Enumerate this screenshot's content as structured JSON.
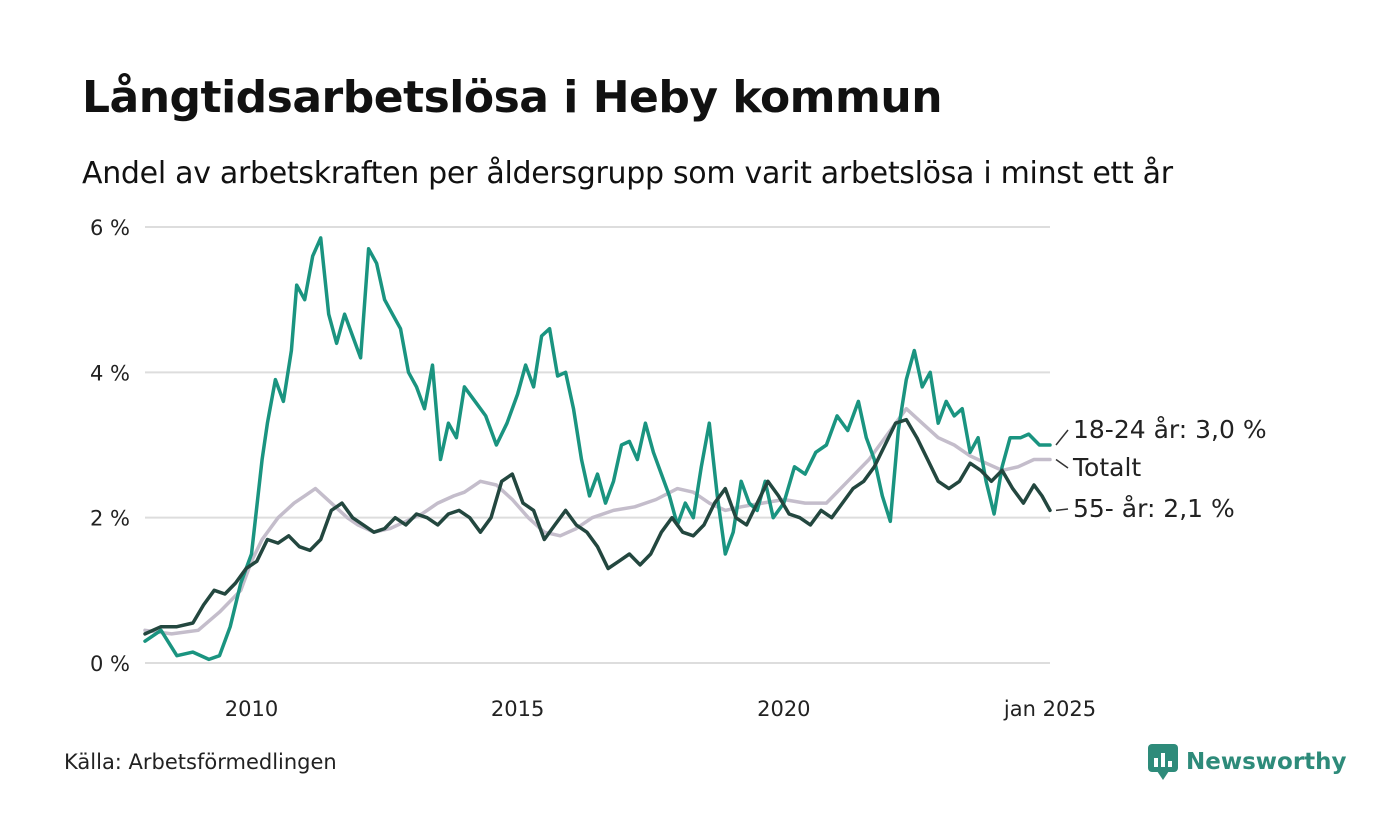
{
  "header": {
    "title": "Långtidsarbetslösa i Heby kommun",
    "subtitle": "Andel av arbetskraften per åldersgrupp som varit arbetslösa i minst ett år"
  },
  "footer": {
    "source": "Källa: Arbetsförmedlingen",
    "brand": "Newsworthy",
    "brand_icon": "bar-chart-icon"
  },
  "colors": {
    "series_18_24": "#1a9480",
    "series_total": "#c4bdcb",
    "series_55": "#23473f",
    "grid": "#dddddd",
    "brand": "#2e8b7a"
  },
  "chart_data": {
    "type": "line",
    "x_start": "2008-01",
    "x_end": "2025-01",
    "x_tick_labels": [
      "2010",
      "2015",
      "2020",
      "jan 2025"
    ],
    "x_tick_values": [
      2010,
      2015,
      2020,
      2025.0
    ],
    "y_tick_labels": [
      "0 %",
      "2 %",
      "4 %",
      "6 %"
    ],
    "y_tick_values": [
      0,
      2,
      4,
      6
    ],
    "ylim": [
      0,
      6
    ],
    "grid": true,
    "legend": "end-of-line labels, right",
    "series": [
      {
        "key": "total",
        "end_label": "Totalt",
        "color": "#c4bdcb",
        "points": [
          [
            2008.0,
            0.45
          ],
          [
            2008.5,
            0.4
          ],
          [
            2009.0,
            0.45
          ],
          [
            2009.4,
            0.7
          ],
          [
            2009.8,
            1.0
          ],
          [
            2010.0,
            1.4
          ],
          [
            2010.2,
            1.7
          ],
          [
            2010.5,
            2.0
          ],
          [
            2010.8,
            2.2
          ],
          [
            2011.0,
            2.3
          ],
          [
            2011.2,
            2.4
          ],
          [
            2011.5,
            2.2
          ],
          [
            2011.8,
            2.0
          ],
          [
            2012.0,
            1.9
          ],
          [
            2012.3,
            1.8
          ],
          [
            2012.6,
            1.85
          ],
          [
            2012.9,
            1.95
          ],
          [
            2013.2,
            2.05
          ],
          [
            2013.5,
            2.2
          ],
          [
            2013.8,
            2.3
          ],
          [
            2014.0,
            2.35
          ],
          [
            2014.3,
            2.5
          ],
          [
            2014.6,
            2.45
          ],
          [
            2014.9,
            2.25
          ],
          [
            2015.2,
            2.0
          ],
          [
            2015.5,
            1.8
          ],
          [
            2015.8,
            1.75
          ],
          [
            2016.1,
            1.85
          ],
          [
            2016.4,
            2.0
          ],
          [
            2016.8,
            2.1
          ],
          [
            2017.2,
            2.15
          ],
          [
            2017.6,
            2.25
          ],
          [
            2018.0,
            2.4
          ],
          [
            2018.3,
            2.35
          ],
          [
            2018.6,
            2.2
          ],
          [
            2018.9,
            2.1
          ],
          [
            2019.2,
            2.15
          ],
          [
            2019.6,
            2.2
          ],
          [
            2020.0,
            2.25
          ],
          [
            2020.4,
            2.2
          ],
          [
            2020.8,
            2.2
          ],
          [
            2021.2,
            2.5
          ],
          [
            2021.6,
            2.8
          ],
          [
            2022.0,
            3.2
          ],
          [
            2022.3,
            3.5
          ],
          [
            2022.6,
            3.3
          ],
          [
            2022.9,
            3.1
          ],
          [
            2023.2,
            3.0
          ],
          [
            2023.5,
            2.85
          ],
          [
            2023.8,
            2.75
          ],
          [
            2024.1,
            2.65
          ],
          [
            2024.4,
            2.7
          ],
          [
            2024.7,
            2.8
          ],
          [
            2025.0,
            2.8
          ]
        ]
      },
      {
        "key": "18-24",
        "end_label": "18-24 år: 3,0 %",
        "color": "#1a9480",
        "points": [
          [
            2008.0,
            0.3
          ],
          [
            2008.3,
            0.45
          ],
          [
            2008.6,
            0.1
          ],
          [
            2008.9,
            0.15
          ],
          [
            2009.2,
            0.05
          ],
          [
            2009.4,
            0.1
          ],
          [
            2009.6,
            0.5
          ],
          [
            2009.8,
            1.1
          ],
          [
            2010.0,
            1.5
          ],
          [
            2010.2,
            2.8
          ],
          [
            2010.3,
            3.3
          ],
          [
            2010.45,
            3.9
          ],
          [
            2010.6,
            3.6
          ],
          [
            2010.75,
            4.3
          ],
          [
            2010.85,
            5.2
          ],
          [
            2011.0,
            5.0
          ],
          [
            2011.15,
            5.6
          ],
          [
            2011.3,
            5.85
          ],
          [
            2011.45,
            4.8
          ],
          [
            2011.6,
            4.4
          ],
          [
            2011.75,
            4.8
          ],
          [
            2011.9,
            4.5
          ],
          [
            2012.05,
            4.2
          ],
          [
            2012.2,
            5.7
          ],
          [
            2012.35,
            5.5
          ],
          [
            2012.5,
            5.0
          ],
          [
            2012.65,
            4.8
          ],
          [
            2012.8,
            4.6
          ],
          [
            2012.95,
            4.0
          ],
          [
            2013.1,
            3.8
          ],
          [
            2013.25,
            3.5
          ],
          [
            2013.4,
            4.1
          ],
          [
            2013.55,
            2.8
          ],
          [
            2013.7,
            3.3
          ],
          [
            2013.85,
            3.1
          ],
          [
            2014.0,
            3.8
          ],
          [
            2014.2,
            3.6
          ],
          [
            2014.4,
            3.4
          ],
          [
            2014.6,
            3.0
          ],
          [
            2014.8,
            3.3
          ],
          [
            2015.0,
            3.7
          ],
          [
            2015.15,
            4.1
          ],
          [
            2015.3,
            3.8
          ],
          [
            2015.45,
            4.5
          ],
          [
            2015.6,
            4.6
          ],
          [
            2015.75,
            3.95
          ],
          [
            2015.9,
            4.0
          ],
          [
            2016.05,
            3.5
          ],
          [
            2016.2,
            2.8
          ],
          [
            2016.35,
            2.3
          ],
          [
            2016.5,
            2.6
          ],
          [
            2016.65,
            2.2
          ],
          [
            2016.8,
            2.5
          ],
          [
            2016.95,
            3.0
          ],
          [
            2017.1,
            3.05
          ],
          [
            2017.25,
            2.8
          ],
          [
            2017.4,
            3.3
          ],
          [
            2017.55,
            2.9
          ],
          [
            2017.7,
            2.6
          ],
          [
            2017.85,
            2.3
          ],
          [
            2018.0,
            1.9
          ],
          [
            2018.15,
            2.2
          ],
          [
            2018.3,
            2.0
          ],
          [
            2018.45,
            2.7
          ],
          [
            2018.6,
            3.3
          ],
          [
            2018.75,
            2.3
          ],
          [
            2018.9,
            1.5
          ],
          [
            2019.05,
            1.8
          ],
          [
            2019.2,
            2.5
          ],
          [
            2019.35,
            2.2
          ],
          [
            2019.5,
            2.1
          ],
          [
            2019.65,
            2.5
          ],
          [
            2019.8,
            2.0
          ],
          [
            2020.0,
            2.2
          ],
          [
            2020.2,
            2.7
          ],
          [
            2020.4,
            2.6
          ],
          [
            2020.6,
            2.9
          ],
          [
            2020.8,
            3.0
          ],
          [
            2021.0,
            3.4
          ],
          [
            2021.2,
            3.2
          ],
          [
            2021.4,
            3.6
          ],
          [
            2021.55,
            3.1
          ],
          [
            2021.7,
            2.8
          ],
          [
            2021.85,
            2.3
          ],
          [
            2022.0,
            1.95
          ],
          [
            2022.15,
            3.2
          ],
          [
            2022.3,
            3.9
          ],
          [
            2022.45,
            4.3
          ],
          [
            2022.6,
            3.8
          ],
          [
            2022.75,
            4.0
          ],
          [
            2022.9,
            3.3
          ],
          [
            2023.05,
            3.6
          ],
          [
            2023.2,
            3.4
          ],
          [
            2023.35,
            3.5
          ],
          [
            2023.5,
            2.9
          ],
          [
            2023.65,
            3.1
          ],
          [
            2023.8,
            2.5
          ],
          [
            2023.95,
            2.05
          ],
          [
            2024.1,
            2.7
          ],
          [
            2024.25,
            3.1
          ],
          [
            2024.45,
            3.1
          ],
          [
            2024.6,
            3.15
          ],
          [
            2024.8,
            3.0
          ],
          [
            2025.0,
            3.0
          ]
        ]
      },
      {
        "key": "55-",
        "end_label": "55- år: 2,1 %",
        "color": "#23473f",
        "points": [
          [
            2008.0,
            0.4
          ],
          [
            2008.3,
            0.5
          ],
          [
            2008.6,
            0.5
          ],
          [
            2008.9,
            0.55
          ],
          [
            2009.1,
            0.8
          ],
          [
            2009.3,
            1.0
          ],
          [
            2009.5,
            0.95
          ],
          [
            2009.7,
            1.1
          ],
          [
            2009.9,
            1.3
          ],
          [
            2010.1,
            1.4
          ],
          [
            2010.3,
            1.7
          ],
          [
            2010.5,
            1.65
          ],
          [
            2010.7,
            1.75
          ],
          [
            2010.9,
            1.6
          ],
          [
            2011.1,
            1.55
          ],
          [
            2011.3,
            1.7
          ],
          [
            2011.5,
            2.1
          ],
          [
            2011.7,
            2.2
          ],
          [
            2011.9,
            2.0
          ],
          [
            2012.1,
            1.9
          ],
          [
            2012.3,
            1.8
          ],
          [
            2012.5,
            1.85
          ],
          [
            2012.7,
            2.0
          ],
          [
            2012.9,
            1.9
          ],
          [
            2013.1,
            2.05
          ],
          [
            2013.3,
            2.0
          ],
          [
            2013.5,
            1.9
          ],
          [
            2013.7,
            2.05
          ],
          [
            2013.9,
            2.1
          ],
          [
            2014.1,
            2.0
          ],
          [
            2014.3,
            1.8
          ],
          [
            2014.5,
            2.0
          ],
          [
            2014.7,
            2.5
          ],
          [
            2014.9,
            2.6
          ],
          [
            2015.1,
            2.2
          ],
          [
            2015.3,
            2.1
          ],
          [
            2015.5,
            1.7
          ],
          [
            2015.7,
            1.9
          ],
          [
            2015.9,
            2.1
          ],
          [
            2016.1,
            1.9
          ],
          [
            2016.3,
            1.8
          ],
          [
            2016.5,
            1.6
          ],
          [
            2016.7,
            1.3
          ],
          [
            2016.9,
            1.4
          ],
          [
            2017.1,
            1.5
          ],
          [
            2017.3,
            1.35
          ],
          [
            2017.5,
            1.5
          ],
          [
            2017.7,
            1.8
          ],
          [
            2017.9,
            2.0
          ],
          [
            2018.1,
            1.8
          ],
          [
            2018.3,
            1.75
          ],
          [
            2018.5,
            1.9
          ],
          [
            2018.7,
            2.2
          ],
          [
            2018.9,
            2.4
          ],
          [
            2019.1,
            2.0
          ],
          [
            2019.3,
            1.9
          ],
          [
            2019.5,
            2.2
          ],
          [
            2019.7,
            2.5
          ],
          [
            2019.9,
            2.3
          ],
          [
            2020.1,
            2.05
          ],
          [
            2020.3,
            2.0
          ],
          [
            2020.5,
            1.9
          ],
          [
            2020.7,
            2.1
          ],
          [
            2020.9,
            2.0
          ],
          [
            2021.1,
            2.2
          ],
          [
            2021.3,
            2.4
          ],
          [
            2021.5,
            2.5
          ],
          [
            2021.7,
            2.7
          ],
          [
            2021.9,
            3.0
          ],
          [
            2022.1,
            3.3
          ],
          [
            2022.3,
            3.35
          ],
          [
            2022.5,
            3.1
          ],
          [
            2022.7,
            2.8
          ],
          [
            2022.9,
            2.5
          ],
          [
            2023.1,
            2.4
          ],
          [
            2023.3,
            2.5
          ],
          [
            2023.5,
            2.75
          ],
          [
            2023.7,
            2.65
          ],
          [
            2023.9,
            2.5
          ],
          [
            2024.1,
            2.65
          ],
          [
            2024.3,
            2.4
          ],
          [
            2024.5,
            2.2
          ],
          [
            2024.7,
            2.45
          ],
          [
            2024.85,
            2.3
          ],
          [
            2025.0,
            2.1
          ]
        ]
      }
    ]
  }
}
